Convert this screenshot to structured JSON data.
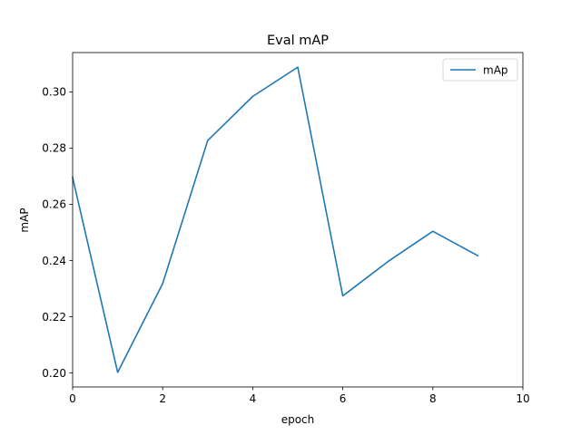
{
  "chart_data": {
    "type": "line",
    "title": "Eval mAP",
    "xlabel": "epoch",
    "ylabel": "mAP",
    "xlim": [
      0,
      10
    ],
    "ylim": [
      0.195,
      0.314
    ],
    "xticks": [
      0,
      2,
      4,
      6,
      8,
      10
    ],
    "xtick_labels": [
      "0",
      "2",
      "4",
      "6",
      "8",
      "10"
    ],
    "yticks": [
      0.2,
      0.22,
      0.24,
      0.26,
      0.28,
      0.3
    ],
    "ytick_labels": [
      "0.20",
      "0.22",
      "0.24",
      "0.26",
      "0.28",
      "0.30"
    ],
    "grid": false,
    "legend_position": "top-right",
    "series": [
      {
        "name": "mAp",
        "color": "#1f77b4",
        "x": [
          0,
          1,
          2,
          3,
          4,
          5,
          6,
          7,
          8,
          9
        ],
        "y": [
          0.2695,
          0.2002,
          0.2318,
          0.2827,
          0.2984,
          0.3088,
          0.2274,
          0.2396,
          0.2504,
          0.2417
        ]
      }
    ]
  }
}
